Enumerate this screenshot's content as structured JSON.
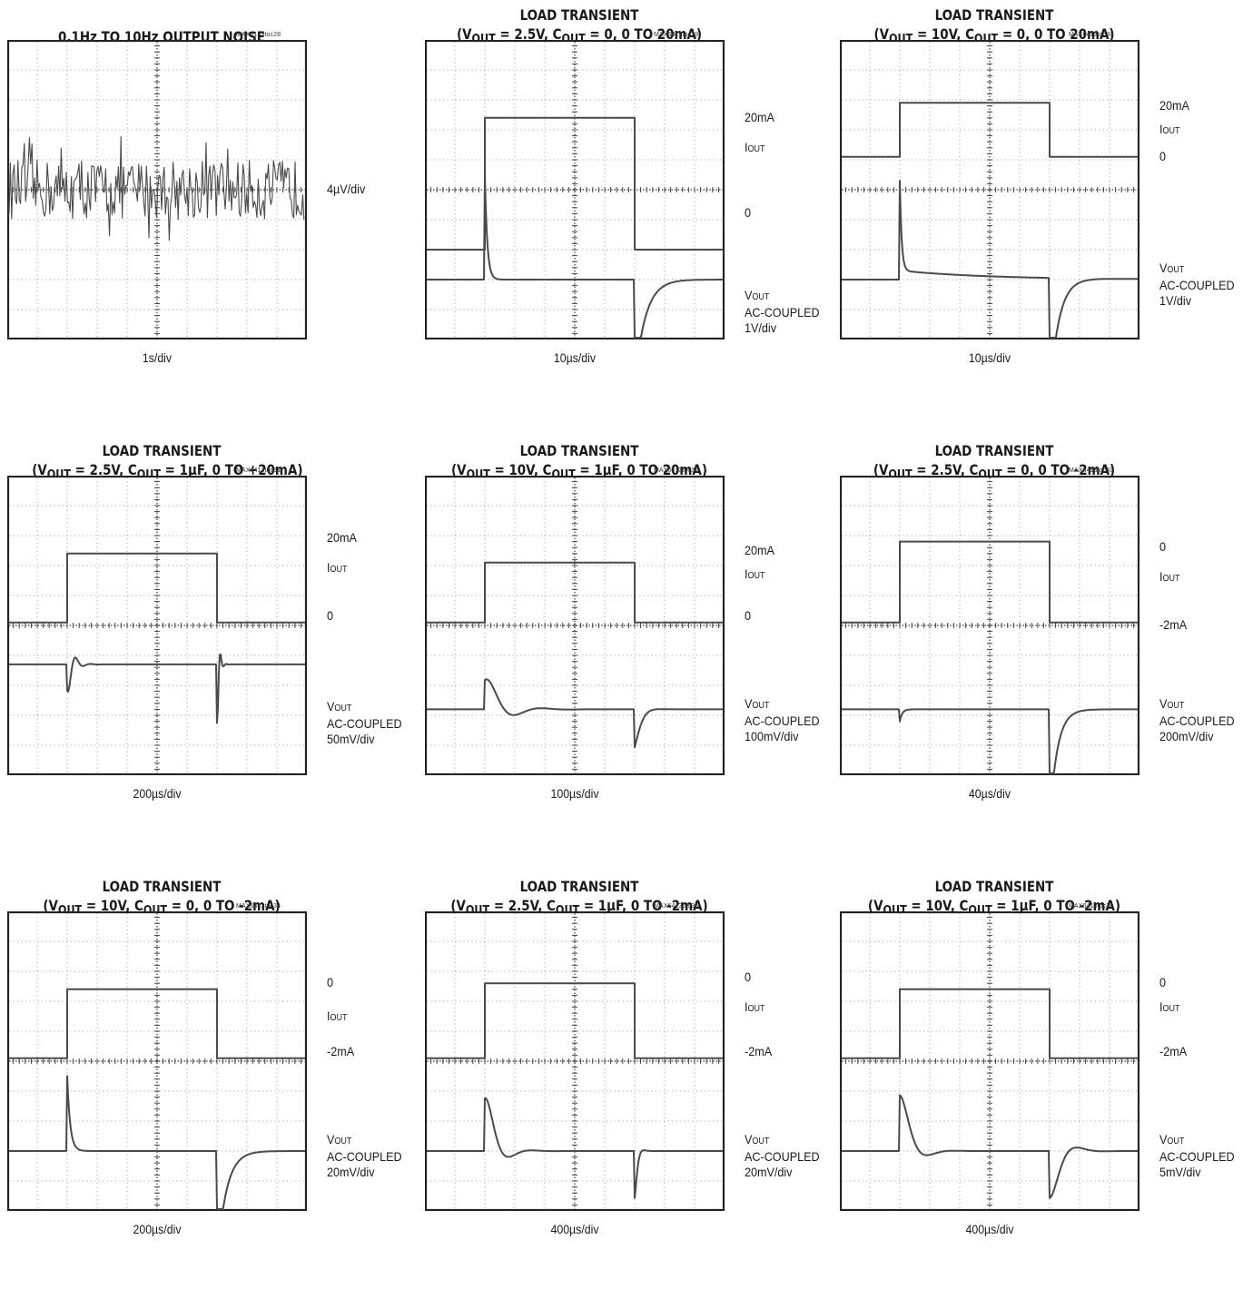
{
  "chart_data": [
    {
      "type": "line",
      "title": "0.1Hz TO 10Hz OUTPUT NOISE",
      "subtitle": "",
      "tag": "MAX6143toc28",
      "xlabel": "1s/div",
      "grid": true,
      "series": [
        {
          "kind": "noise",
          "level_div": 5.0,
          "amplitude_div": 1.0
        }
      ],
      "right_labels": [
        {
          "text": "4µV/div",
          "div": 5.0
        }
      ]
    },
    {
      "type": "line",
      "title": "LOAD TRANSIENT",
      "subtitle": "(V_OUT = 2.5V, C_OUT = 0, 0 TO 20mA)",
      "tag": "MAX6413toc29",
      "xlabel": "10µs/div",
      "grid": true,
      "series": [
        {
          "kind": "pulse",
          "base_div": 3.0,
          "top_div": 7.4,
          "rise_div": 2.0,
          "fall_div": 7.0
        },
        {
          "kind": "transient",
          "base_div": 2.0,
          "events": [
            {
              "at_div": 2.0,
              "peak_div": 5.5,
              "decay": 0.08
            },
            {
              "at_div": 7.0,
              "peak_div": -1.5,
              "decay": 0.35
            }
          ]
        }
      ],
      "right_labels": [
        {
          "text": "20mA",
          "div": 7.4
        },
        {
          "text": "I_OUT",
          "div": 6.4
        },
        {
          "text": "0",
          "div": 4.2
        },
        {
          "text": "V_OUT\nAC-COUPLED\n1V/div",
          "div": 1.5
        }
      ]
    },
    {
      "type": "line",
      "title": "LOAD TRANSIENT",
      "subtitle": "(V_OUT = 10V, C_OUT = 0, 0 TO 20mA)",
      "tag": "MAX6413toc30",
      "xlabel": "10µs/div",
      "grid": true,
      "series": [
        {
          "kind": "pulse",
          "base_div": 6.1,
          "top_div": 7.9,
          "rise_div": 2.0,
          "fall_div": 7.0
        },
        {
          "kind": "transient",
          "base_div": 2.0,
          "events": [
            {
              "at_div": 2.0,
              "peak_div": 5.0,
              "decay": 0.06,
              "sag_div": 0.3
            },
            {
              "at_div": 7.0,
              "peak_div": -2.0,
              "decay": 0.3
            }
          ]
        }
      ],
      "right_labels": [
        {
          "text": "20mA",
          "div": 7.8
        },
        {
          "text": "I_OUT",
          "div": 7.0
        },
        {
          "text": "0",
          "div": 6.1
        },
        {
          "text": "V_OUT\nAC-COUPLED\n1V/div",
          "div": 2.4
        }
      ]
    },
    {
      "type": "line",
      "title": "LOAD TRANSIENT",
      "subtitle": "(V_OUT = 2.5V, C_OUT = 1µF, 0 TO +20mA)",
      "tag": "MAX6413toc31",
      "xlabel": "200µs/div",
      "grid": true,
      "series": [
        {
          "kind": "pulse",
          "base_div": 5.1,
          "top_div": 7.4,
          "rise_div": 2.0,
          "fall_div": 7.0
        },
        {
          "kind": "ring",
          "base_div": 3.7,
          "events": [
            {
              "at_div": 2.0,
              "amp_div": -0.9,
              "decay": 0.18,
              "freq": 8
            },
            {
              "at_div": 7.0,
              "amp_div": -2.0,
              "decay": 0.06,
              "freq": 20
            }
          ]
        }
      ],
      "right_labels": [
        {
          "text": "20mA",
          "div": 7.9
        },
        {
          "text": "I_OUT",
          "div": 6.9
        },
        {
          "text": "0",
          "div": 5.3
        },
        {
          "text": "V_OUT\nAC-COUPLED\n50mV/div",
          "div": 2.3
        }
      ]
    },
    {
      "type": "line",
      "title": "LOAD TRANSIENT",
      "subtitle": "(V_OUT = 10V, C_OUT = 1µF, 0 TO 20mA)",
      "tag": "MAX6413toc32",
      "xlabel": "100µs/div",
      "grid": true,
      "series": [
        {
          "kind": "pulse",
          "base_div": 5.1,
          "top_div": 7.1,
          "rise_div": 2.0,
          "fall_div": 7.0
        },
        {
          "kind": "ring",
          "base_div": 2.2,
          "events": [
            {
              "at_div": 2.0,
              "amp_div": 1.0,
              "decay": 0.55,
              "freq": 2.2
            },
            {
              "at_div": 7.0,
              "amp_div": -1.3,
              "decay": 0.18,
              "freq": 2
            }
          ]
        }
      ],
      "right_labels": [
        {
          "text": "20mA",
          "div": 7.5
        },
        {
          "text": "I_OUT",
          "div": 6.7
        },
        {
          "text": "0",
          "div": 5.3
        },
        {
          "text": "V_OUT\nAC-COUPLED\n100mV/div",
          "div": 2.4
        }
      ]
    },
    {
      "type": "line",
      "title": "LOAD TRANSIENT",
      "subtitle": "(V_OUT = 2.5V, C_OUT = 0, 0 TO -2mA)",
      "tag": "MAX6413toc33",
      "xlabel": "40µs/div",
      "grid": true,
      "series": [
        {
          "kind": "pulse",
          "base_div": 5.1,
          "top_div": 7.8,
          "rise_div": 2.0,
          "fall_div": 7.0
        },
        {
          "kind": "transient",
          "base_div": 2.2,
          "events": [
            {
              "at_div": 2.0,
              "peak_div": 1.8,
              "decay": 0.08
            },
            {
              "at_div": 7.0,
              "peak_div": -1.6,
              "decay": 0.25
            }
          ]
        }
      ],
      "right_labels": [
        {
          "text": "0",
          "div": 7.6
        },
        {
          "text": "I_OUT",
          "div": 6.6
        },
        {
          "text": "-2mA",
          "div": 5.0
        },
        {
          "text": "V_OUT\nAC-COUPLED\n200mV/div",
          "div": 2.4
        }
      ]
    },
    {
      "type": "line",
      "title": "LOAD TRANSIENT",
      "subtitle": "(V_OUT = 10V, C_OUT = 0, 0 TO -2mA)",
      "tag": "MAX6413toc34",
      "xlabel": "200µs/div",
      "grid": true,
      "series": [
        {
          "kind": "pulse",
          "base_div": 5.1,
          "top_div": 7.4,
          "rise_div": 2.0,
          "fall_div": 7.0
        },
        {
          "kind": "transient",
          "base_div": 2.0,
          "events": [
            {
              "at_div": 2.0,
              "peak_div": 4.5,
              "decay": 0.1
            },
            {
              "at_div": 7.0,
              "peak_div": -1.8,
              "decay": 0.3
            }
          ]
        }
      ],
      "right_labels": [
        {
          "text": "0",
          "div": 7.6
        },
        {
          "text": "I_OUT",
          "div": 6.5
        },
        {
          "text": "-2mA",
          "div": 5.3
        },
        {
          "text": "V_OUT\nAC-COUPLED\n20mV/div",
          "div": 2.4
        }
      ]
    },
    {
      "type": "line",
      "title": "LOAD TRANSIENT",
      "subtitle": "(V_OUT = 2.5V, C_OUT = 1µF, 0 TO -2mA)",
      "tag": "MAX6413toc35",
      "xlabel": "400µs/div",
      "grid": true,
      "series": [
        {
          "kind": "pulse",
          "base_div": 5.1,
          "top_div": 7.6,
          "rise_div": 2.0,
          "fall_div": 7.0
        },
        {
          "kind": "ring",
          "base_div": 2.0,
          "events": [
            {
              "at_div": 2.0,
              "amp_div": 1.8,
              "decay": 0.35,
              "freq": 2.6
            },
            {
              "at_div": 7.0,
              "amp_div": -1.6,
              "decay": 0.08,
              "freq": 6
            }
          ]
        }
      ],
      "right_labels": [
        {
          "text": "0",
          "div": 7.8
        },
        {
          "text": "I_OUT",
          "div": 6.8
        },
        {
          "text": "-2mA",
          "div": 5.3
        },
        {
          "text": "V_OUT\nAC-COUPLED\n20mV/div",
          "div": 2.4
        }
      ]
    },
    {
      "type": "line",
      "title": "LOAD TRANSIENT",
      "subtitle": "(V_OUT = 10V, C_OUT = 1µF, 0 TO -2mA)",
      "tag": "MAX6413toc36",
      "xlabel": "400µs/div",
      "grid": true,
      "series": [
        {
          "kind": "pulse",
          "base_div": 5.1,
          "top_div": 7.4,
          "rise_div": 2.0,
          "fall_div": 7.0
        },
        {
          "kind": "ring",
          "base_div": 2.0,
          "events": [
            {
              "at_div": 2.0,
              "amp_div": 1.9,
              "decay": 0.35,
              "freq": 2.2
            },
            {
              "at_div": 7.0,
              "amp_div": -1.6,
              "decay": 0.35,
              "freq": 2.2
            }
          ]
        }
      ],
      "right_labels": [
        {
          "text": "0",
          "div": 7.6
        },
        {
          "text": "I_OUT",
          "div": 6.8
        },
        {
          "text": "-2mA",
          "div": 5.3
        },
        {
          "text": "V_OUT\nAC-COUPLED\n5mV/div",
          "div": 2.4
        }
      ]
    }
  ]
}
